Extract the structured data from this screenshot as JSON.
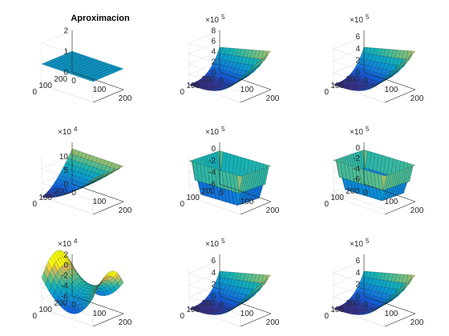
{
  "chart_data": [
    {
      "type": "surface",
      "title": "Aproximacion",
      "surface": "flat",
      "zlim": [
        0,
        2
      ],
      "zticks": [
        "0",
        "1",
        "2"
      ],
      "xticks": [
        "0",
        "100",
        "200"
      ],
      "yticks": [
        "200",
        "100",
        "0"
      ],
      "xlim": [
        0,
        200
      ],
      "ylim": [
        0,
        200
      ],
      "exponent": "",
      "colormap": "parula"
    },
    {
      "type": "surface",
      "title": "",
      "surface": "peak",
      "zlim": [
        0,
        8
      ],
      "zticks": [
        "0",
        "2",
        "4",
        "6",
        "8"
      ],
      "xticks": [
        "0",
        "100",
        "200"
      ],
      "yticks": [
        "200",
        "100",
        "0"
      ],
      "xlim": [
        0,
        200
      ],
      "ylim": [
        0,
        200
      ],
      "exponent": "5",
      "colormap": "parula"
    },
    {
      "type": "surface",
      "title": "",
      "surface": "peak",
      "zlim": [
        0,
        7
      ],
      "zticks": [
        "0",
        "2",
        "4",
        "6"
      ],
      "xticks": [
        "0",
        "100",
        "200"
      ],
      "yticks": [
        "200",
        "100",
        "0"
      ],
      "xlim": [
        0,
        200
      ],
      "ylim": [
        0,
        200
      ],
      "exponent": "5",
      "colormap": "parula"
    },
    {
      "type": "surface",
      "title": "",
      "surface": "cone",
      "zlim": [
        0,
        15
      ],
      "zticks": [
        "0",
        "5",
        "10"
      ],
      "xticks": [
        "0",
        "100",
        "200"
      ],
      "yticks": [
        "200",
        "100",
        "0"
      ],
      "xlim": [
        0,
        200
      ],
      "ylim": [
        0,
        200
      ],
      "exponent": "4",
      "colormap": "parula"
    },
    {
      "type": "surface",
      "title": "",
      "surface": "trough",
      "zlim": [
        -6,
        1
      ],
      "zticks": [
        "0",
        "-2",
        "-4",
        "-6"
      ],
      "xticks": [
        "0",
        "100",
        "200"
      ],
      "yticks": [
        "200",
        "100",
        "0"
      ],
      "xlim": [
        0,
        200
      ],
      "ylim": [
        0,
        200
      ],
      "exponent": "5",
      "colormap": "parula"
    },
    {
      "type": "surface",
      "title": "",
      "surface": "trough",
      "zlim": [
        -7,
        1
      ],
      "zticks": [
        "0",
        "-2",
        "-4",
        "-6"
      ],
      "xticks": [
        "0",
        "100",
        "200"
      ],
      "yticks": [
        "200",
        "100",
        "0"
      ],
      "xlim": [
        0,
        200
      ],
      "ylim": [
        0,
        200
      ],
      "exponent": "5",
      "colormap": "parula"
    },
    {
      "type": "surface",
      "title": "",
      "surface": "saddle",
      "zlim": [
        -6,
        2
      ],
      "zticks": [
        "2",
        "0",
        "-2",
        "-4",
        "-6"
      ],
      "xticks": [
        "0",
        "100",
        "200"
      ],
      "yticks": [
        "200",
        "100",
        "0"
      ],
      "xlim": [
        0,
        200
      ],
      "ylim": [
        0,
        200
      ],
      "exponent": "4",
      "colormap": "parula"
    },
    {
      "type": "surface",
      "title": "",
      "surface": "peak",
      "zlim": [
        0,
        7
      ],
      "zticks": [
        "0",
        "2",
        "4",
        "6"
      ],
      "xticks": [
        "0",
        "100",
        "200"
      ],
      "yticks": [
        "200",
        "100",
        "0"
      ],
      "xlim": [
        0,
        200
      ],
      "ylim": [
        0,
        200
      ],
      "exponent": "5",
      "colormap": "parula"
    },
    {
      "type": "surface",
      "title": "",
      "surface": "peak",
      "zlim": [
        0,
        7
      ],
      "zticks": [
        "0",
        "2",
        "4",
        "6"
      ],
      "xticks": [
        "0",
        "100",
        "200"
      ],
      "yticks": [
        "200",
        "100",
        "0"
      ],
      "xlim": [
        0,
        200
      ],
      "ylim": [
        0,
        200
      ],
      "exponent": "5",
      "colormap": "parula"
    }
  ]
}
